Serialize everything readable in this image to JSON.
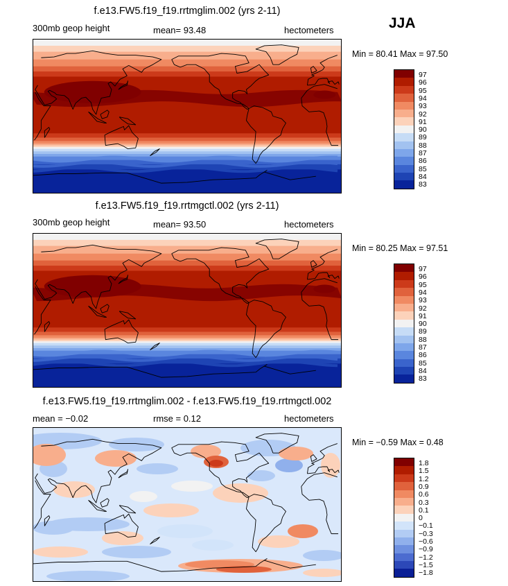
{
  "season": "JJA",
  "panels": [
    {
      "title": "f.e13.FW5.f19_f19.rrtmglim.002 (yrs 2-11)",
      "left_label": "300mb geop height",
      "stat": "mean=   93.48",
      "units": "hectometers",
      "minmax": "Min =  80.41 Max =  97.50",
      "kind": "abs",
      "colorbar_labels": [
        "97",
        "96",
        "95",
        "94",
        "93",
        "92",
        "91",
        "90",
        "89",
        "88",
        "87",
        "86",
        "85",
        "84",
        "83"
      ]
    },
    {
      "title": "f.e13.FW5.f19_f19.rrtmgctl.002 (yrs 2-11)",
      "left_label": "300mb geop height",
      "stat": "mean=   93.50",
      "units": "hectometers",
      "minmax": "Min =  80.25 Max =  97.51",
      "kind": "abs",
      "colorbar_labels": [
        "97",
        "96",
        "95",
        "94",
        "93",
        "92",
        "91",
        "90",
        "89",
        "88",
        "87",
        "86",
        "85",
        "84",
        "83"
      ]
    },
    {
      "title": "f.e13.FW5.f19_f19.rrtmglim.002 - f.e13.FW5.f19_f19.rrtmgctl.002",
      "left_label": "mean =  −0.02",
      "stat": "rmse =   0.12",
      "units": "hectometers",
      "minmax": "Min =  −0.59 Max =   0.48",
      "kind": "diff",
      "colorbar_labels": [
        "1.8",
        "1.5",
        "1.2",
        "0.9",
        "0.6",
        "0.3",
        "0.1",
        "0",
        "−0.1",
        "−0.3",
        "−0.6",
        "−0.9",
        "−1.2",
        "−1.5",
        "−1.8"
      ]
    }
  ],
  "colors": {
    "abs_scale": [
      "#800000",
      "#b01c00",
      "#cc3a1a",
      "#e0623c",
      "#f08a62",
      "#f8ae8c",
      "#fcd2ba",
      "#f2f2f2",
      "#c6dcf6",
      "#a2c2f0",
      "#7ea6ea",
      "#5a86de",
      "#3a64cc",
      "#1e44b4",
      "#08239a"
    ],
    "diff_scale": [
      "#800000",
      "#b01c00",
      "#cc3a1a",
      "#e0623c",
      "#f08a62",
      "#f8ae8c",
      "#fcd2ba",
      "#f2f2f2",
      "#d2e4fa",
      "#b2ccf4",
      "#90b0ec",
      "#6e90e0",
      "#4c6cd0",
      "#2c48b8",
      "#0a1f96"
    ]
  }
}
